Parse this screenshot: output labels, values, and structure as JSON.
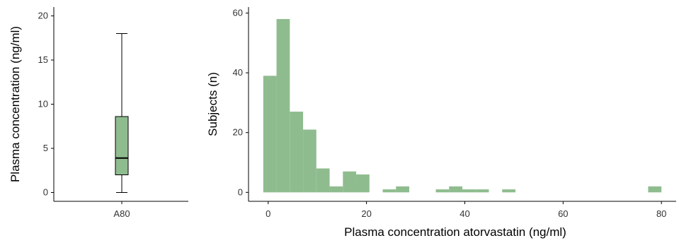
{
  "chart_data": [
    {
      "type": "box",
      "categories": [
        "A80"
      ],
      "ylabel": "Plasma concentration (ng/ml)",
      "ylim": [
        -1,
        21
      ],
      "yticks": [
        0,
        5,
        10,
        15,
        20
      ],
      "grid": false,
      "box": {
        "min": 0,
        "q1": 2.0,
        "median": 3.9,
        "q3": 8.6,
        "max": 18.0
      },
      "fill_color": "#8fbc8f"
    },
    {
      "type": "bar",
      "subtype": "histogram",
      "xlabel": "Plasma concentration atorvastatin (ng/ml)",
      "ylabel": "Subjects (n)",
      "xlim": [
        -4,
        83
      ],
      "ylim": [
        -3,
        62
      ],
      "xticks": [
        0,
        20,
        40,
        60,
        80
      ],
      "yticks": [
        0,
        20,
        40,
        60
      ],
      "grid": false,
      "bin_width": 2.7,
      "bins": [
        {
          "x0": -1.0,
          "count": 39
        },
        {
          "x0": 1.7,
          "count": 58
        },
        {
          "x0": 4.4,
          "count": 27
        },
        {
          "x0": 7.1,
          "count": 21
        },
        {
          "x0": 9.8,
          "count": 8
        },
        {
          "x0": 12.5,
          "count": 2
        },
        {
          "x0": 15.2,
          "count": 7
        },
        {
          "x0": 17.9,
          "count": 6
        },
        {
          "x0": 20.6,
          "count": 0
        },
        {
          "x0": 23.3,
          "count": 1
        },
        {
          "x0": 26.0,
          "count": 2
        },
        {
          "x0": 34.1,
          "count": 1
        },
        {
          "x0": 36.8,
          "count": 2
        },
        {
          "x0": 39.5,
          "count": 1
        },
        {
          "x0": 42.2,
          "count": 1
        },
        {
          "x0": 47.6,
          "count": 1
        },
        {
          "x0": 77.3,
          "count": 2
        }
      ],
      "fill_color": "#8fbc8f"
    }
  ]
}
